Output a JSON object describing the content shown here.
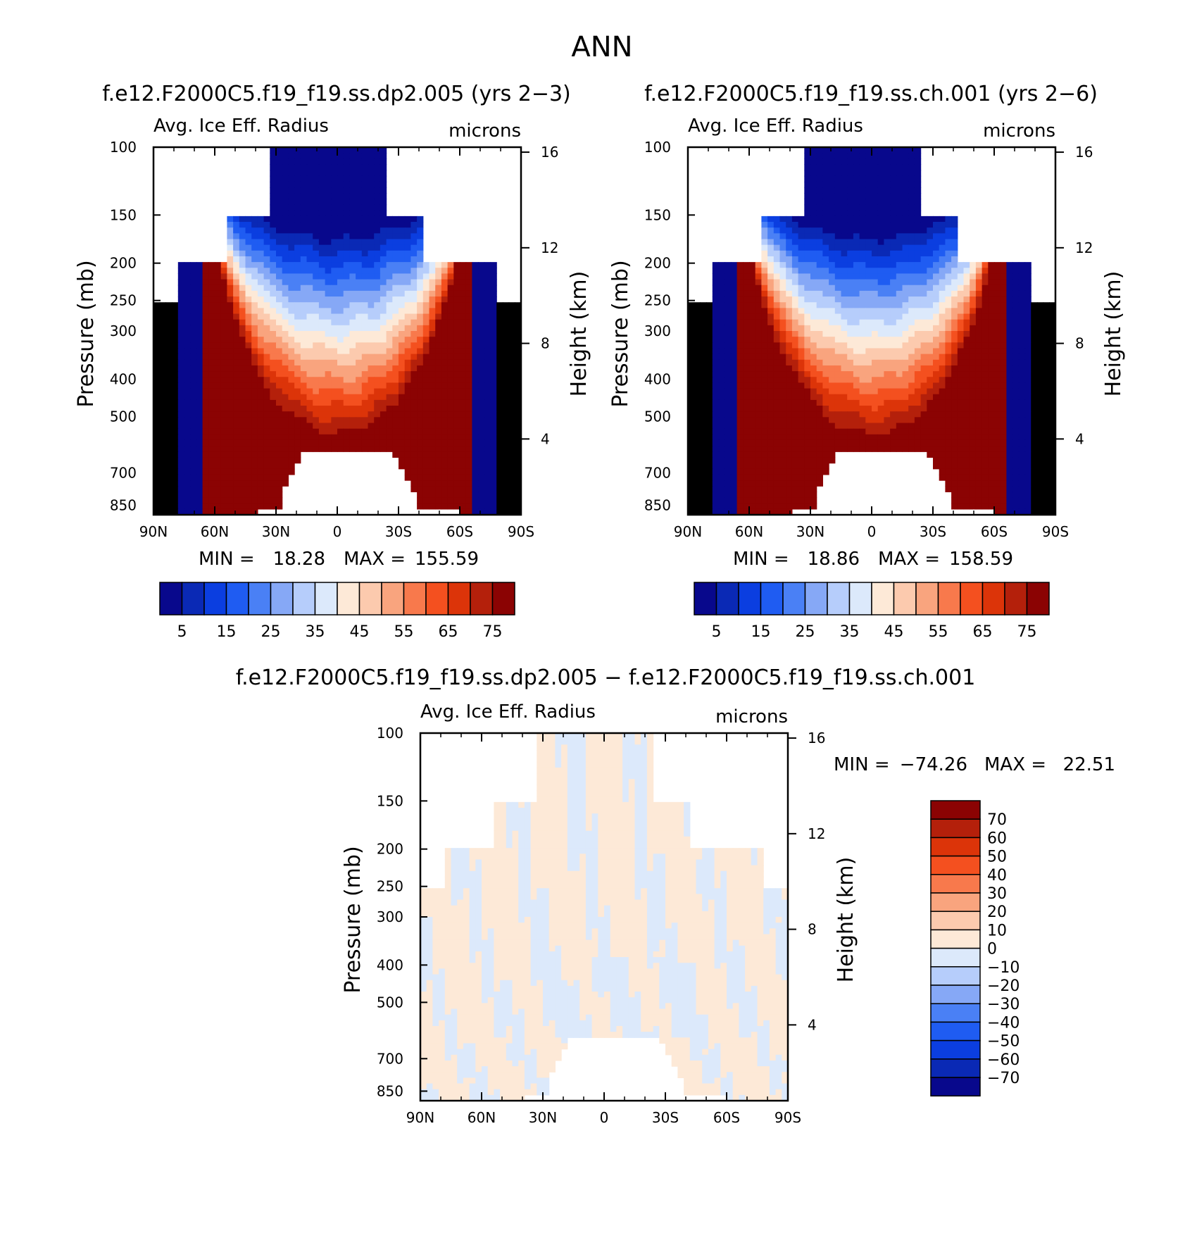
{
  "figure": {
    "title": "ANN"
  },
  "scale": {
    "abs_colors": [
      "#08088c",
      "#0a29b5",
      "#0b3ee0",
      "#1f5cf2",
      "#4a80f5",
      "#86a8f6",
      "#b6cdfb",
      "#dce9fb",
      "#fde9d7",
      "#fccaae",
      "#f9a47e",
      "#f8794c",
      "#f4501f",
      "#dc3409",
      "#b4200b",
      "#8b0303"
    ],
    "abs_labels": [
      "5",
      "15",
      "25",
      "35",
      "45",
      "55",
      "65",
      "75"
    ],
    "diff_colors": [
      "#8b0303",
      "#b4200b",
      "#dc3409",
      "#f4501f",
      "#f8794c",
      "#f9a47e",
      "#fccaae",
      "#fde9d7",
      "#dce9fb",
      "#b6cdfb",
      "#86a8f6",
      "#4a80f5",
      "#1f5cf2",
      "#0b3ee0",
      "#0a29b5",
      "#08088c"
    ],
    "diff_labels": [
      "70",
      "60",
      "50",
      "40",
      "30",
      "20",
      "10",
      "0",
      "−10",
      "−20",
      "−30",
      "−40",
      "−50",
      "−60",
      "−70"
    ]
  },
  "axes": {
    "ylabel_left": "Pressure (mb)",
    "ylabel_right": "Height (km)",
    "pressure_ticks": [
      "100",
      "150",
      "200",
      "250",
      "300",
      "400",
      "500",
      "700",
      "850"
    ],
    "height_ticks": [
      "16",
      "12",
      "8",
      "4"
    ],
    "lat_ticks": [
      "90N",
      "60N",
      "30N",
      "0",
      "30S",
      "60S",
      "90S"
    ]
  },
  "chart_data": [
    {
      "type": "heatmap",
      "panel": "top-left",
      "title": "f.e12.F2000C5.f19_f19.ss.dp2.005 (yrs 2−3)",
      "variable": "Avg. Ice Eff. Radius",
      "units": "microns",
      "min_label": "MIN =",
      "min": "18.28",
      "max_label": "MAX =",
      "max": "155.59",
      "xlabel": "",
      "ylabel": "Pressure (mb)",
      "ylabel_right": "Height (km)",
      "x_range": [
        90,
        -90
      ],
      "y_range_mb": [
        100,
        900
      ],
      "contour_levels": [
        5,
        10,
        15,
        20,
        25,
        30,
        35,
        40,
        45,
        50,
        55,
        60,
        65,
        70,
        75
      ]
    },
    {
      "type": "heatmap",
      "panel": "top-right",
      "title": "f.e12.F2000C5.f19_f19.ss.ch.001 (yrs 2−6)",
      "variable": "Avg. Ice Eff. Radius",
      "units": "microns",
      "min_label": "MIN =",
      "min": "18.86",
      "max_label": "MAX =",
      "max": "158.59",
      "xlabel": "",
      "ylabel": "Pressure (mb)",
      "ylabel_right": "Height (km)",
      "x_range": [
        90,
        -90
      ],
      "y_range_mb": [
        100,
        900
      ],
      "contour_levels": [
        5,
        10,
        15,
        20,
        25,
        30,
        35,
        40,
        45,
        50,
        55,
        60,
        65,
        70,
        75
      ]
    },
    {
      "type": "heatmap",
      "panel": "bottom-difference",
      "title": "f.e12.F2000C5.f19_f19.ss.dp2.005 − f.e12.F2000C5.f19_f19.ss.ch.001",
      "variable": "Avg. Ice Eff. Radius",
      "units": "microns",
      "min_label": "MIN =",
      "min": "−74.26",
      "max_label": "MAX =",
      "max": "22.51",
      "xlabel": "",
      "ylabel": "Pressure (mb)",
      "ylabel_right": "Height (km)",
      "x_range": [
        90,
        -90
      ],
      "y_range_mb": [
        100,
        900
      ],
      "contour_levels": [
        -70,
        -60,
        -50,
        -40,
        -30,
        -20,
        -10,
        0,
        10,
        20,
        30,
        40,
        50,
        60,
        70
      ]
    }
  ]
}
